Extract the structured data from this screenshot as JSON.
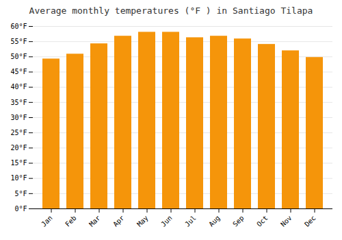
{
  "chart_data": {
    "type": "bar",
    "title": "Average monthly temperatures (°F ) in Santiago Tilapa",
    "categories": [
      "Jan",
      "Feb",
      "Mar",
      "Apr",
      "May",
      "Jun",
      "Jul",
      "Aug",
      "Sep",
      "Oct",
      "Nov",
      "Dec"
    ],
    "values": [
      49.3,
      50.9,
      54.3,
      56.8,
      58.1,
      58.1,
      56.3,
      56.8,
      55.9,
      54.1,
      52.0,
      49.8
    ],
    "color": "#F5950A",
    "ylim": [
      0,
      60
    ],
    "yticks": [
      {
        "value": 0,
        "label": "0°F"
      },
      {
        "value": 5,
        "label": "5°F"
      },
      {
        "value": 10,
        "label": "10°F"
      },
      {
        "value": 15,
        "label": "15°F"
      },
      {
        "value": 20,
        "label": "20°F"
      },
      {
        "value": 25,
        "label": "25°F"
      },
      {
        "value": 30,
        "label": "30°F"
      },
      {
        "value": 35,
        "label": "35°F"
      },
      {
        "value": 40,
        "label": "40°F"
      },
      {
        "value": 45,
        "label": "45°F"
      },
      {
        "value": 50,
        "label": "50°F"
      },
      {
        "value": 55,
        "label": "55°F"
      },
      {
        "value": 60,
        "label": "60°F"
      }
    ],
    "grid": true
  }
}
